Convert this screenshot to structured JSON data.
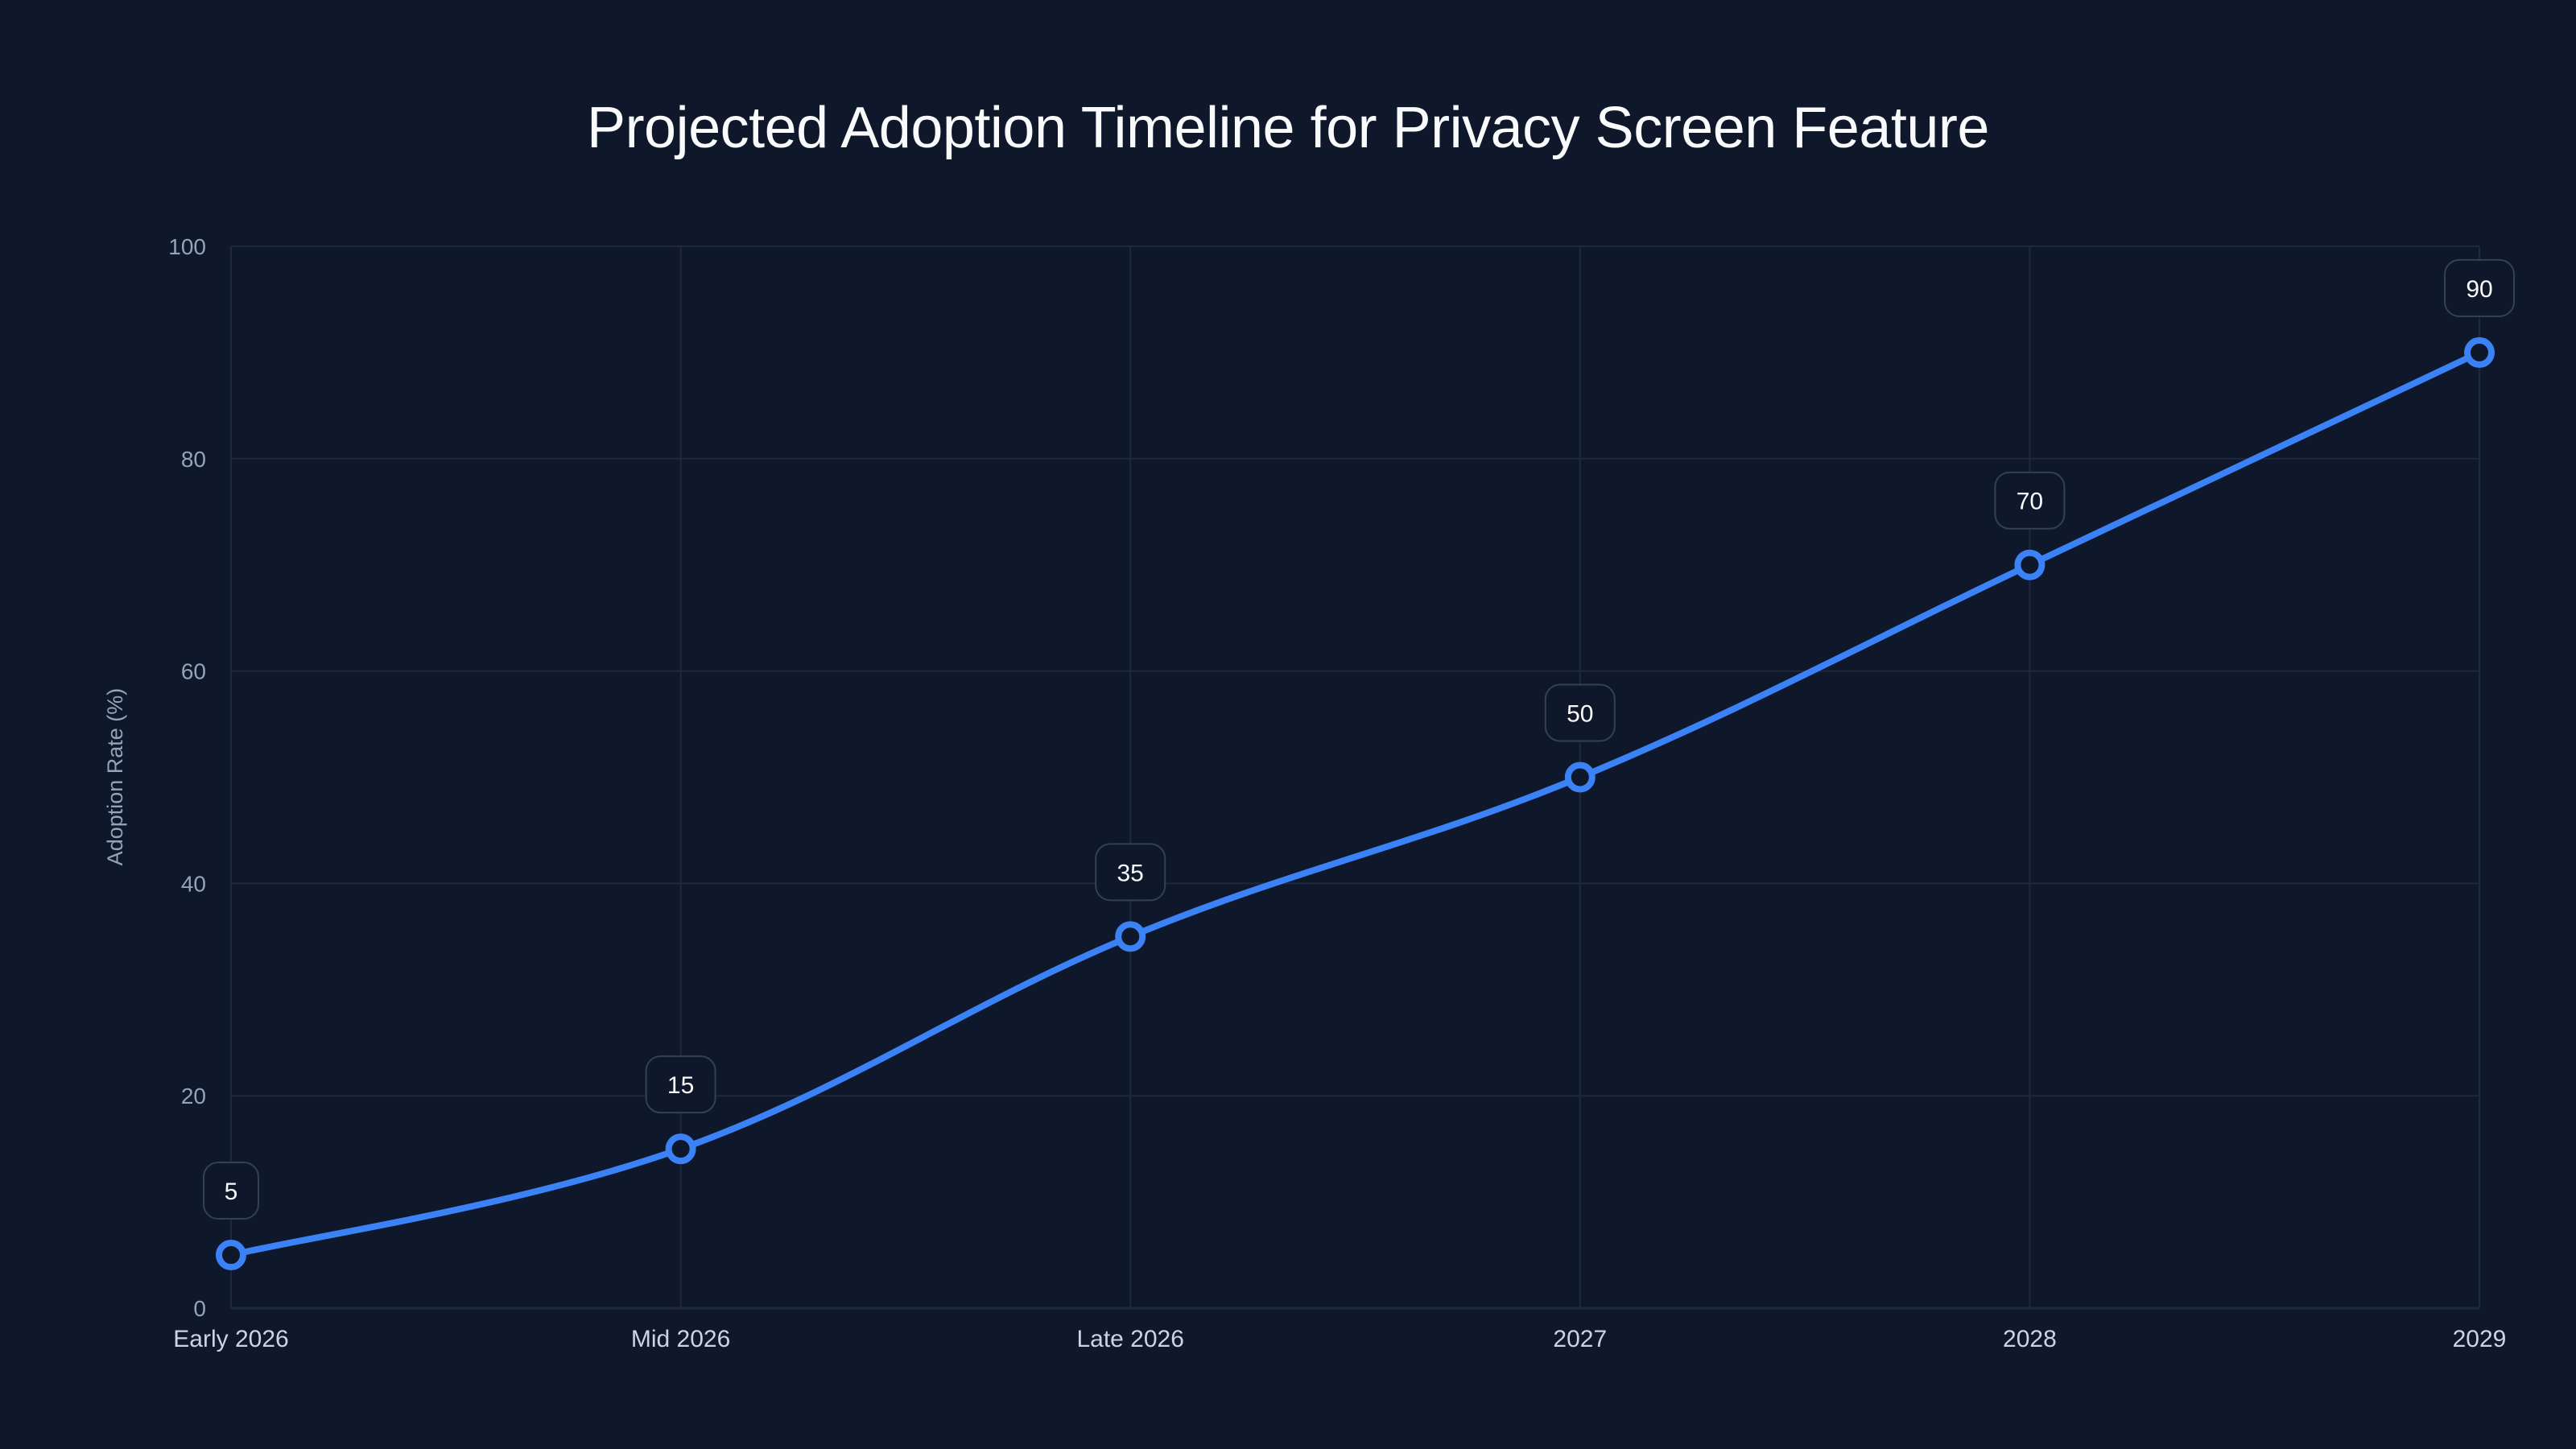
{
  "chart_data": {
    "type": "line",
    "title": "Projected Adoption Timeline for Privacy Screen Feature",
    "xlabel": "",
    "ylabel": "Adoption Rate (%)",
    "categories": [
      "Early 2026",
      "Mid 2026",
      "Late 2026",
      "2027",
      "2028",
      "2029"
    ],
    "series": [
      {
        "name": "Adoption Rate",
        "values": [
          5,
          15,
          35,
          50,
          70,
          90
        ],
        "color": "#3b82f6"
      }
    ],
    "ylim": [
      0,
      100
    ],
    "yticks": [
      0,
      20,
      40,
      60,
      80,
      100
    ],
    "grid": true,
    "legend": "none",
    "data_labels": [
      "5",
      "15",
      "35",
      "50",
      "70",
      "90"
    ],
    "smooth": true
  },
  "colors": {
    "background": "#0f172a",
    "line": "#3b82f6",
    "grid": "#1e293b",
    "label_box_border": "#334155"
  }
}
